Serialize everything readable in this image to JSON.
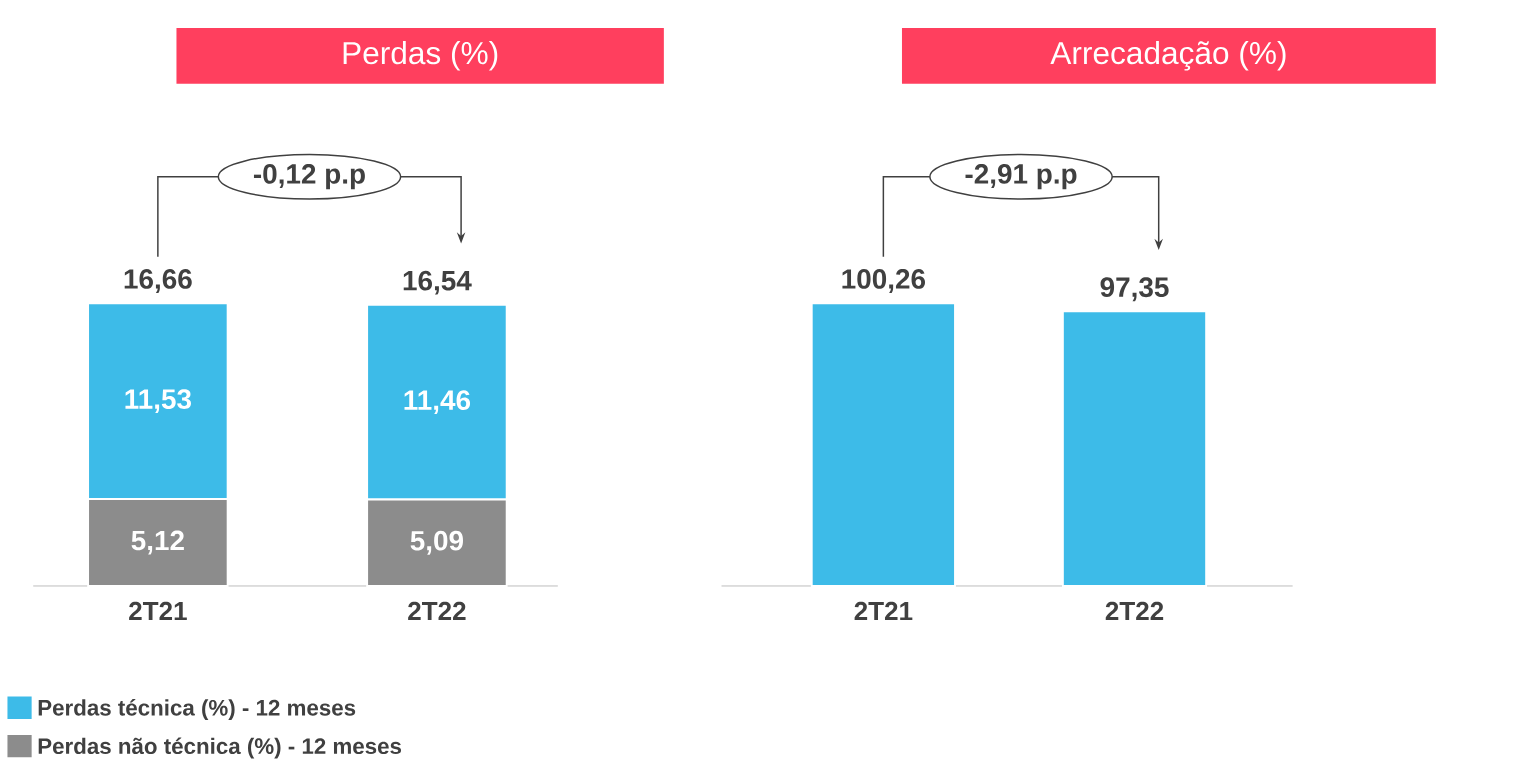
{
  "chart_data": [
    {
      "type": "bar",
      "title": "Perdas (%)",
      "categories": [
        "2T21",
        "2T22"
      ],
      "stacked": true,
      "legend": "bottom left",
      "series": [
        {
          "name": "Perdas não técnica (%) - 12 meses",
          "color": "#8c8c8c",
          "values": [
            5.12,
            5.09
          ],
          "value_labels": [
            "5,12",
            "5,09"
          ]
        },
        {
          "name": "Perdas técnica (%) - 12 meses",
          "color": "#3dbbe8",
          "values": [
            11.53,
            11.46
          ],
          "value_labels": [
            "11,53",
            "11,46"
          ]
        }
      ],
      "totals": [
        "16,66",
        "16,54"
      ],
      "annotations": [
        "-0,12 p.p"
      ]
    },
    {
      "type": "bar",
      "title": "Arrecadação (%)",
      "categories": [
        "2T21",
        "2T22"
      ],
      "values": [
        100.26,
        97.35
      ],
      "color": "#3dbbe8",
      "value_labels": [
        "100,26",
        "97,35"
      ],
      "annotations": [
        "-2,91 p.p"
      ]
    }
  ]
}
